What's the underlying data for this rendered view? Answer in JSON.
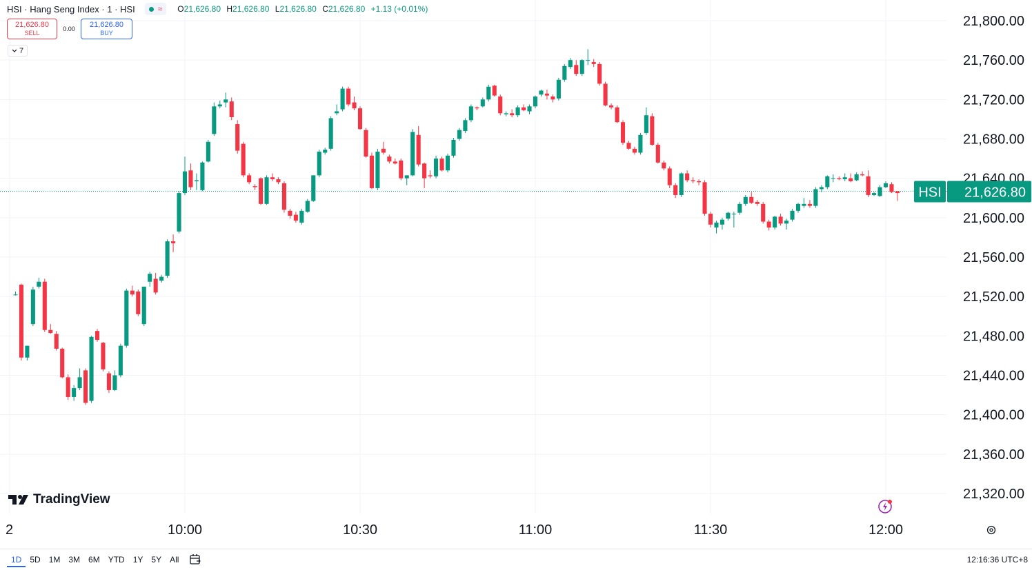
{
  "legend": {
    "title": "HSI · Hang Seng Index · 1 · HSI",
    "o_label": "O",
    "o": "21,626.80",
    "h_label": "H",
    "h": "21,626.80",
    "l_label": "L",
    "l": "21,626.80",
    "c_label": "C",
    "c": "21,626.80",
    "change": "+1.13 (+0.01%)",
    "wave_icon": "≈"
  },
  "trade": {
    "sell_price": "21,626.80",
    "sell_label": "SELL",
    "spread": "0.00",
    "buy_price": "21,626.80",
    "buy_label": "BUY"
  },
  "indicators_toggle": {
    "label": "7",
    "icon": "chevron-down-icon"
  },
  "price_tag": {
    "symbol": "HSI",
    "price": "21,626.80",
    "color": "#089981"
  },
  "logo_text": "TradingView",
  "ranges": [
    "1D",
    "5D",
    "1M",
    "3M",
    "6M",
    "YTD",
    "1Y",
    "5Y",
    "All"
  ],
  "active_range": "1D",
  "clock": "12:16:36 UTC+8",
  "colors": {
    "up": "#089981",
    "down": "#f23645",
    "grid": "#f0f3fa",
    "accent": "#2962ff"
  },
  "chart_data": {
    "type": "candlestick",
    "interval_minutes": 1,
    "y_ticks": [
      "21,800.00",
      "21,760.00",
      "21,720.00",
      "21,680.00",
      "21,640.00",
      "21,600.00",
      "21,560.00",
      "21,520.00",
      "21,480.00",
      "21,440.00",
      "21,400.00",
      "21,360.00",
      "21,320.00"
    ],
    "y_tick_values": [
      21800,
      21760,
      21720,
      21680,
      21640,
      21600,
      21560,
      21520,
      21480,
      21440,
      21400,
      21360,
      21320
    ],
    "ylim": [
      21300,
      21820
    ],
    "x_ticks": [
      "2",
      "10:00",
      "10:30",
      "11:00",
      "11:30",
      "12:00"
    ],
    "last_price": 21626.8,
    "candles": [
      {
        "t": "09:31",
        "o": 21522,
        "h": 21525,
        "l": 21521,
        "c": 21522
      },
      {
        "t": "09:32",
        "o": 21532,
        "h": 21533,
        "l": 21455,
        "c": 21458
      },
      {
        "t": "09:33",
        "o": 21458,
        "h": 21470,
        "l": 21455,
        "c": 21470
      },
      {
        "t": "09:34",
        "o": 21492,
        "h": 21530,
        "l": 21490,
        "c": 21527
      },
      {
        "t": "09:35",
        "o": 21530,
        "h": 21539,
        "l": 21528,
        "c": 21535
      },
      {
        "t": "09:36",
        "o": 21535,
        "h": 21538,
        "l": 21484,
        "c": 21486
      },
      {
        "t": "09:37",
        "o": 21486,
        "h": 21492,
        "l": 21482,
        "c": 21483
      },
      {
        "t": "09:38",
        "o": 21482,
        "h": 21485,
        "l": 21465,
        "c": 21467
      },
      {
        "t": "09:39",
        "o": 21467,
        "h": 21468,
        "l": 21437,
        "c": 21438
      },
      {
        "t": "09:40",
        "o": 21438,
        "h": 21441,
        "l": 21415,
        "c": 21418
      },
      {
        "t": "09:41",
        "o": 21418,
        "h": 21430,
        "l": 21414,
        "c": 21427
      },
      {
        "t": "09:42",
        "o": 21427,
        "h": 21447,
        "l": 21425,
        "c": 21438
      },
      {
        "t": "09:43",
        "o": 21445,
        "h": 21447,
        "l": 21410,
        "c": 21412
      },
      {
        "t": "09:44",
        "o": 21414,
        "h": 21480,
        "l": 21412,
        "c": 21479
      },
      {
        "t": "09:45",
        "o": 21485,
        "h": 21487,
        "l": 21474,
        "c": 21476
      },
      {
        "t": "09:46",
        "o": 21473,
        "h": 21474,
        "l": 21444,
        "c": 21446
      },
      {
        "t": "09:47",
        "o": 21442,
        "h": 21444,
        "l": 21422,
        "c": 21425
      },
      {
        "t": "09:48",
        "o": 21425,
        "h": 21445,
        "l": 21424,
        "c": 21440
      },
      {
        "t": "09:49",
        "o": 21440,
        "h": 21472,
        "l": 21438,
        "c": 21470
      },
      {
        "t": "09:50",
        "o": 21470,
        "h": 21528,
        "l": 21468,
        "c": 21526
      },
      {
        "t": "09:51",
        "o": 21526,
        "h": 21531,
        "l": 21520,
        "c": 21522
      },
      {
        "t": "09:52",
        "o": 21525,
        "h": 21527,
        "l": 21500,
        "c": 21502
      },
      {
        "t": "09:53",
        "o": 21492,
        "h": 21530,
        "l": 21490,
        "c": 21530
      },
      {
        "t": "09:54",
        "o": 21535,
        "h": 21545,
        "l": 21530,
        "c": 21543
      },
      {
        "t": "09:55",
        "o": 21538,
        "h": 21544,
        "l": 21522,
        "c": 21524
      },
      {
        "t": "09:56",
        "o": 21536,
        "h": 21542,
        "l": 21534,
        "c": 21540
      },
      {
        "t": "09:57",
        "o": 21541,
        "h": 21578,
        "l": 21539,
        "c": 21576
      },
      {
        "t": "09:58",
        "o": 21576,
        "h": 21583,
        "l": 21565,
        "c": 21574
      },
      {
        "t": "09:59",
        "o": 21586,
        "h": 21627,
        "l": 21584,
        "c": 21625
      },
      {
        "t": "10:00",
        "o": 21625,
        "h": 21662,
        "l": 21623,
        "c": 21647
      },
      {
        "t": "10:01",
        "o": 21648,
        "h": 21655,
        "l": 21628,
        "c": 21631
      },
      {
        "t": "10:02",
        "o": 21637,
        "h": 21645,
        "l": 21628,
        "c": 21638
      },
      {
        "t": "10:03",
        "o": 21628,
        "h": 21657,
        "l": 21627,
        "c": 21656
      },
      {
        "t": "10:04",
        "o": 21657,
        "h": 21679,
        "l": 21656,
        "c": 21677
      },
      {
        "t": "10:05",
        "o": 21685,
        "h": 21717,
        "l": 21683,
        "c": 21713
      },
      {
        "t": "10:06",
        "o": 21713,
        "h": 21719,
        "l": 21711,
        "c": 21715
      },
      {
        "t": "10:07",
        "o": 21717,
        "h": 21727,
        "l": 21712,
        "c": 21720
      },
      {
        "t": "10:08",
        "o": 21718,
        "h": 21722,
        "l": 21699,
        "c": 21702
      },
      {
        "t": "10:09",
        "o": 21695,
        "h": 21699,
        "l": 21665,
        "c": 21668
      },
      {
        "t": "10:10",
        "o": 21675,
        "h": 21677,
        "l": 21641,
        "c": 21643
      },
      {
        "t": "10:11",
        "o": 21643,
        "h": 21645,
        "l": 21634,
        "c": 21636
      },
      {
        "t": "10:12",
        "o": 21632,
        "h": 21634,
        "l": 21628,
        "c": 21631
      },
      {
        "t": "10:13",
        "o": 21640,
        "h": 21641,
        "l": 21613,
        "c": 21614
      },
      {
        "t": "10:14",
        "o": 21614,
        "h": 21643,
        "l": 21613,
        "c": 21641
      },
      {
        "t": "10:15",
        "o": 21641,
        "h": 21645,
        "l": 21637,
        "c": 21639
      },
      {
        "t": "10:16",
        "o": 21639,
        "h": 21641,
        "l": 21634,
        "c": 21636
      },
      {
        "t": "10:17",
        "o": 21635,
        "h": 21637,
        "l": 21605,
        "c": 21608
      },
      {
        "t": "10:18",
        "o": 21607,
        "h": 21609,
        "l": 21599,
        "c": 21602
      },
      {
        "t": "10:19",
        "o": 21603,
        "h": 21606,
        "l": 21595,
        "c": 21597
      },
      {
        "t": "10:20",
        "o": 21595,
        "h": 21609,
        "l": 21593,
        "c": 21607
      },
      {
        "t": "10:21",
        "o": 21606,
        "h": 21619,
        "l": 21605,
        "c": 21617
      },
      {
        "t": "10:22",
        "o": 21617,
        "h": 21643,
        "l": 21616,
        "c": 21643
      },
      {
        "t": "10:23",
        "o": 21643,
        "h": 21669,
        "l": 21641,
        "c": 21667
      },
      {
        "t": "10:24",
        "o": 21666,
        "h": 21671,
        "l": 21664,
        "c": 21669
      },
      {
        "t": "10:25",
        "o": 21670,
        "h": 21703,
        "l": 21668,
        "c": 21701
      },
      {
        "t": "10:26",
        "o": 21706,
        "h": 21715,
        "l": 21704,
        "c": 21708
      },
      {
        "t": "10:27",
        "o": 21710,
        "h": 21733,
        "l": 21708,
        "c": 21731
      },
      {
        "t": "10:28",
        "o": 21731,
        "h": 21733,
        "l": 21713,
        "c": 21715
      },
      {
        "t": "10:29",
        "o": 21717,
        "h": 21723,
        "l": 21709,
        "c": 21711
      },
      {
        "t": "10:30",
        "o": 21711,
        "h": 21713,
        "l": 21689,
        "c": 21690
      },
      {
        "t": "10:31",
        "o": 21689,
        "h": 21691,
        "l": 21661,
        "c": 21662
      },
      {
        "t": "10:32",
        "o": 21663,
        "h": 21666,
        "l": 21629,
        "c": 21630
      },
      {
        "t": "10:33",
        "o": 21630,
        "h": 21670,
        "l": 21628,
        "c": 21667
      },
      {
        "t": "10:34",
        "o": 21670,
        "h": 21677,
        "l": 21664,
        "c": 21666
      },
      {
        "t": "10:35",
        "o": 21662,
        "h": 21664,
        "l": 21655,
        "c": 21657
      },
      {
        "t": "10:36",
        "o": 21657,
        "h": 21660,
        "l": 21654,
        "c": 21655
      },
      {
        "t": "10:37",
        "o": 21658,
        "h": 21660,
        "l": 21638,
        "c": 21640
      },
      {
        "t": "10:38",
        "o": 21640,
        "h": 21643,
        "l": 21633,
        "c": 21643
      },
      {
        "t": "10:39",
        "o": 21643,
        "h": 21690,
        "l": 21642,
        "c": 21687
      },
      {
        "t": "10:40",
        "o": 21684,
        "h": 21693,
        "l": 21652,
        "c": 21654
      },
      {
        "t": "10:41",
        "o": 21655,
        "h": 21656,
        "l": 21630,
        "c": 21640
      },
      {
        "t": "10:42",
        "o": 21643,
        "h": 21648,
        "l": 21640,
        "c": 21642
      },
      {
        "t": "10:43",
        "o": 21642,
        "h": 21663,
        "l": 21640,
        "c": 21660
      },
      {
        "t": "10:44",
        "o": 21660,
        "h": 21662,
        "l": 21647,
        "c": 21648
      },
      {
        "t": "10:45",
        "o": 21648,
        "h": 21665,
        "l": 21646,
        "c": 21663
      },
      {
        "t": "10:46",
        "o": 21663,
        "h": 21681,
        "l": 21661,
        "c": 21679
      },
      {
        "t": "10:47",
        "o": 21680,
        "h": 21691,
        "l": 21678,
        "c": 21689
      },
      {
        "t": "10:48",
        "o": 21688,
        "h": 21701,
        "l": 21686,
        "c": 21699
      },
      {
        "t": "10:49",
        "o": 21699,
        "h": 21715,
        "l": 21697,
        "c": 21713
      },
      {
        "t": "10:50",
        "o": 21712,
        "h": 21713,
        "l": 21709,
        "c": 21711
      },
      {
        "t": "10:51",
        "o": 21713,
        "h": 21722,
        "l": 21712,
        "c": 21720
      },
      {
        "t": "10:52",
        "o": 21720,
        "h": 21735,
        "l": 21718,
        "c": 21733
      },
      {
        "t": "10:53",
        "o": 21734,
        "h": 21735,
        "l": 21723,
        "c": 21724
      },
      {
        "t": "10:54",
        "o": 21723,
        "h": 21725,
        "l": 21704,
        "c": 21706
      },
      {
        "t": "10:55",
        "o": 21705,
        "h": 21708,
        "l": 21703,
        "c": 21706
      },
      {
        "t": "10:56",
        "o": 21706,
        "h": 21710,
        "l": 21702,
        "c": 21704
      },
      {
        "t": "10:57",
        "o": 21704,
        "h": 21714,
        "l": 21702,
        "c": 21712
      },
      {
        "t": "10:58",
        "o": 21712,
        "h": 21715,
        "l": 21708,
        "c": 21709
      },
      {
        "t": "10:59",
        "o": 21708,
        "h": 21715,
        "l": 21705,
        "c": 21713
      },
      {
        "t": "11:00",
        "o": 21713,
        "h": 21724,
        "l": 21711,
        "c": 21723
      },
      {
        "t": "11:01",
        "o": 21725,
        "h": 21730,
        "l": 21723,
        "c": 21729
      },
      {
        "t": "11:02",
        "o": 21726,
        "h": 21730,
        "l": 21720,
        "c": 21724
      },
      {
        "t": "11:03",
        "o": 21723,
        "h": 21725,
        "l": 21717,
        "c": 21720
      },
      {
        "t": "11:04",
        "o": 21721,
        "h": 21742,
        "l": 21719,
        "c": 21740
      },
      {
        "t": "11:05",
        "o": 21740,
        "h": 21756,
        "l": 21738,
        "c": 21754
      },
      {
        "t": "11:06",
        "o": 21753,
        "h": 21762,
        "l": 21751,
        "c": 21760
      },
      {
        "t": "11:07",
        "o": 21755,
        "h": 21760,
        "l": 21744,
        "c": 21746
      },
      {
        "t": "11:08",
        "o": 21746,
        "h": 21761,
        "l": 21744,
        "c": 21760
      },
      {
        "t": "11:09",
        "o": 21760,
        "h": 21771,
        "l": 21755,
        "c": 21760
      },
      {
        "t": "11:10",
        "o": 21758,
        "h": 21761,
        "l": 21753,
        "c": 21756
      },
      {
        "t": "11:11",
        "o": 21756,
        "h": 21758,
        "l": 21734,
        "c": 21736
      },
      {
        "t": "11:12",
        "o": 21736,
        "h": 21738,
        "l": 21713,
        "c": 21714
      },
      {
        "t": "11:13",
        "o": 21714,
        "h": 21716,
        "l": 21710,
        "c": 21712
      },
      {
        "t": "11:14",
        "o": 21712,
        "h": 21714,
        "l": 21696,
        "c": 21697
      },
      {
        "t": "11:15",
        "o": 21697,
        "h": 21699,
        "l": 21674,
        "c": 21676
      },
      {
        "t": "11:16",
        "o": 21676,
        "h": 21678,
        "l": 21669,
        "c": 21670
      },
      {
        "t": "11:17",
        "o": 21670,
        "h": 21672,
        "l": 21664,
        "c": 21666
      },
      {
        "t": "11:18",
        "o": 21666,
        "h": 21686,
        "l": 21664,
        "c": 21684
      },
      {
        "t": "11:19",
        "o": 21686,
        "h": 21712,
        "l": 21684,
        "c": 21704
      },
      {
        "t": "11:20",
        "o": 21703,
        "h": 21706,
        "l": 21673,
        "c": 21674
      },
      {
        "t": "11:21",
        "o": 21674,
        "h": 21676,
        "l": 21655,
        "c": 21656
      },
      {
        "t": "11:22",
        "o": 21656,
        "h": 21658,
        "l": 21648,
        "c": 21650
      },
      {
        "t": "11:23",
        "o": 21650,
        "h": 21652,
        "l": 21630,
        "c": 21633
      },
      {
        "t": "11:24",
        "o": 21633,
        "h": 21635,
        "l": 21620,
        "c": 21623
      },
      {
        "t": "11:25",
        "o": 21623,
        "h": 21646,
        "l": 21621,
        "c": 21645
      },
      {
        "t": "11:26",
        "o": 21645,
        "h": 21648,
        "l": 21636,
        "c": 21638
      },
      {
        "t": "11:27",
        "o": 21638,
        "h": 21641,
        "l": 21635,
        "c": 21637
      },
      {
        "t": "11:28",
        "o": 21637,
        "h": 21639,
        "l": 21633,
        "c": 21636
      },
      {
        "t": "11:29",
        "o": 21636,
        "h": 21638,
        "l": 21602,
        "c": 21604
      },
      {
        "t": "11:30",
        "o": 21604,
        "h": 21606,
        "l": 21590,
        "c": 21593
      },
      {
        "t": "11:31",
        "o": 21590,
        "h": 21597,
        "l": 21584,
        "c": 21595
      },
      {
        "t": "11:32",
        "o": 21593,
        "h": 21600,
        "l": 21588,
        "c": 21598
      },
      {
        "t": "11:33",
        "o": 21599,
        "h": 21606,
        "l": 21597,
        "c": 21605
      },
      {
        "t": "11:34",
        "o": 21604,
        "h": 21606,
        "l": 21590,
        "c": 21604
      },
      {
        "t": "11:35",
        "o": 21605,
        "h": 21616,
        "l": 21603,
        "c": 21614
      },
      {
        "t": "11:36",
        "o": 21614,
        "h": 21623,
        "l": 21612,
        "c": 21621
      },
      {
        "t": "11:37",
        "o": 21621,
        "h": 21626,
        "l": 21614,
        "c": 21615
      },
      {
        "t": "11:38",
        "o": 21616,
        "h": 21618,
        "l": 21612,
        "c": 21614
      },
      {
        "t": "11:39",
        "o": 21614,
        "h": 21616,
        "l": 21594,
        "c": 21596
      },
      {
        "t": "11:40",
        "o": 21596,
        "h": 21598,
        "l": 21587,
        "c": 21590
      },
      {
        "t": "11:41",
        "o": 21590,
        "h": 21602,
        "l": 21588,
        "c": 21601
      },
      {
        "t": "11:42",
        "o": 21601,
        "h": 21604,
        "l": 21592,
        "c": 21594
      },
      {
        "t": "11:43",
        "o": 21594,
        "h": 21599,
        "l": 21588,
        "c": 21597
      },
      {
        "t": "11:44",
        "o": 21598,
        "h": 21609,
        "l": 21596,
        "c": 21607
      },
      {
        "t": "11:45",
        "o": 21607,
        "h": 21615,
        "l": 21605,
        "c": 21614
      },
      {
        "t": "11:46",
        "o": 21612,
        "h": 21620,
        "l": 21610,
        "c": 21614
      },
      {
        "t": "11:47",
        "o": 21614,
        "h": 21618,
        "l": 21610,
        "c": 21612
      },
      {
        "t": "11:48",
        "o": 21612,
        "h": 21631,
        "l": 21610,
        "c": 21629
      },
      {
        "t": "11:49",
        "o": 21629,
        "h": 21633,
        "l": 21626,
        "c": 21631
      },
      {
        "t": "11:50",
        "o": 21631,
        "h": 21643,
        "l": 21629,
        "c": 21642
      },
      {
        "t": "11:51",
        "o": 21640,
        "h": 21644,
        "l": 21636,
        "c": 21640
      },
      {
        "t": "11:52",
        "o": 21640,
        "h": 21642,
        "l": 21638,
        "c": 21639
      },
      {
        "t": "11:53",
        "o": 21639,
        "h": 21645,
        "l": 21637,
        "c": 21641
      },
      {
        "t": "11:54",
        "o": 21640,
        "h": 21645,
        "l": 21636,
        "c": 21637
      },
      {
        "t": "11:55",
        "o": 21638,
        "h": 21646,
        "l": 21637,
        "c": 21644
      },
      {
        "t": "11:56",
        "o": 21644,
        "h": 21647,
        "l": 21642,
        "c": 21643
      },
      {
        "t": "11:57",
        "o": 21642,
        "h": 21648,
        "l": 21621,
        "c": 21623
      },
      {
        "t": "11:58",
        "o": 21623,
        "h": 21626,
        "l": 21622,
        "c": 21625
      },
      {
        "t": "11:59",
        "o": 21622,
        "h": 21633,
        "l": 21621,
        "c": 21631
      },
      {
        "t": "12:00",
        "o": 21631,
        "h": 21637,
        "l": 21630,
        "c": 21635
      },
      {
        "t": "12:01",
        "o": 21634,
        "h": 21636,
        "l": 21625,
        "c": 21626
      },
      {
        "t": "12:02",
        "o": 21626.8,
        "h": 21627,
        "l": 21617,
        "c": 21625
      }
    ]
  }
}
